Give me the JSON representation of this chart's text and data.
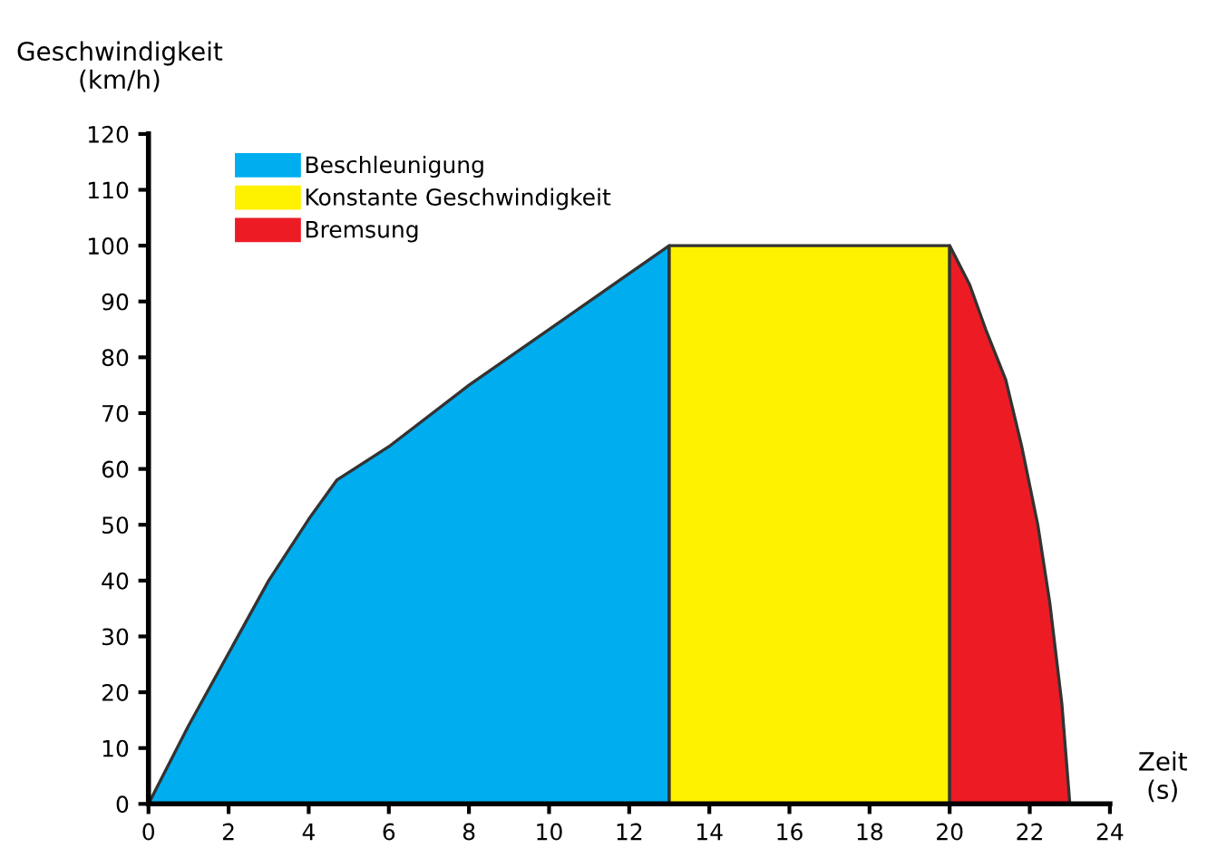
{
  "chart_data": {
    "type": "area",
    "xlabel": "Zeit\n(s)",
    "ylabel": "Geschwindigkeit\n(km/h)",
    "series": [
      {
        "name": "Beschleunigung",
        "color": "#00aeef",
        "x": [
          0,
          1,
          2,
          3,
          4,
          4.7,
          6,
          8,
          10,
          12,
          13
        ],
        "values": [
          0,
          14,
          27,
          40,
          51,
          58,
          64,
          75,
          85,
          95,
          100
        ]
      },
      {
        "name": "Konstante Geschwindigkeit",
        "color": "#fff200",
        "x": [
          13,
          20
        ],
        "values": [
          100,
          100
        ]
      },
      {
        "name": "Bremsung",
        "color": "#ed1c24",
        "x": [
          20,
          20.5,
          20.9,
          21.4,
          21.8,
          22.2,
          22.5,
          22.8,
          23
        ],
        "values": [
          100,
          93,
          85,
          76,
          64,
          50,
          36,
          18,
          0
        ]
      }
    ],
    "xlim": [
      0,
      24
    ],
    "xticks": [
      0,
      2,
      4,
      6,
      8,
      10,
      12,
      14,
      16,
      18,
      20,
      22,
      24
    ],
    "ylim": [
      0,
      120
    ],
    "yticks": [
      0,
      10,
      20,
      30,
      40,
      50,
      60,
      70,
      80,
      90,
      100,
      110,
      120
    ],
    "grid": false,
    "legend": "top left"
  }
}
